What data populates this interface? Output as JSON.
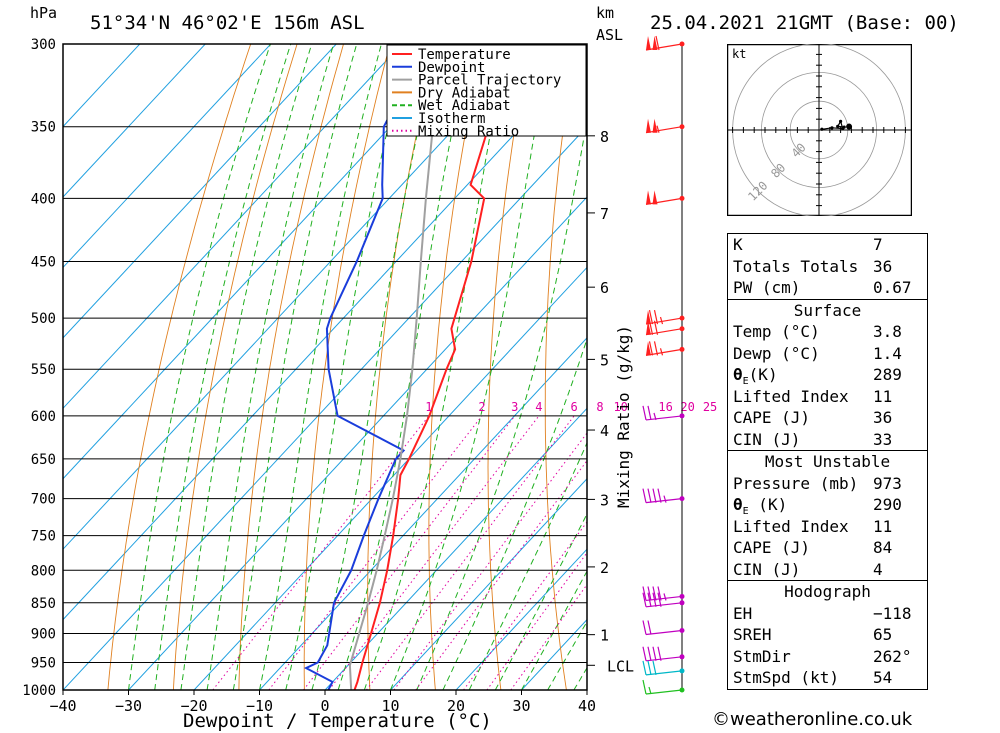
{
  "header": {
    "pressure_unit": "hPa",
    "location": "51°34'N  46°02'E  156m  ASL",
    "km_label": "km",
    "asl_label": "ASL",
    "datetime": "25.04.2021  21GMT  (Base: 00)"
  },
  "chart_data": {
    "type": "line",
    "title": "51°34'N  46°02'E  156m  ASL",
    "xlabel": "Dewpoint / Temperature (°C)",
    "ylabel": "hPa",
    "xlim": [
      -40,
      40
    ],
    "ylim": [
      1000,
      300
    ],
    "x_ticks": [
      -40,
      -30,
      -20,
      -10,
      0,
      10,
      20,
      30,
      40
    ],
    "x_tick_labels": [
      "−40",
      "−30",
      "−20",
      "−10",
      "0",
      "10",
      "20",
      "30",
      "40"
    ],
    "pressure_levels": [
      300,
      350,
      400,
      450,
      500,
      550,
      600,
      650,
      700,
      750,
      800,
      850,
      900,
      950,
      1000
    ],
    "km_ticks": [
      {
        "km": "1",
        "p": 902
      },
      {
        "km": "2",
        "p": 795
      },
      {
        "km": "3",
        "p": 701
      },
      {
        "km": "4",
        "p": 616
      },
      {
        "km": "5",
        "p": 540
      },
      {
        "km": "6",
        "p": 472
      },
      {
        "km": "7",
        "p": 411
      },
      {
        "km": "8",
        "p": 356
      }
    ],
    "lcl": {
      "label": "LCL",
      "p": 955
    },
    "mixing_ratio_axis_label": "Mixing Ratio (g/kg)",
    "mixing_ratio_values": [
      1,
      2,
      3,
      4,
      6,
      8,
      10,
      16,
      20,
      25
    ],
    "mixing_ratio_labels": [
      "1",
      "2",
      "3",
      "4",
      "6",
      "8",
      "10",
      "16",
      "20",
      "25"
    ],
    "legend": {
      "position": "top-center",
      "entries": [
        {
          "label": "Temperature",
          "color": "#ff2020",
          "style": "solid"
        },
        {
          "label": "Dewpoint",
          "color": "#1a3ddb",
          "style": "solid"
        },
        {
          "label": "Parcel Trajectory",
          "color": "#a0a0a0",
          "style": "solid"
        },
        {
          "label": "Dry Adiabat",
          "color": "#e08020",
          "style": "solid"
        },
        {
          "label": "Wet Adiabat",
          "color": "#20b020",
          "style": "dashed"
        },
        {
          "label": "Isotherm",
          "color": "#20a0e0",
          "style": "solid"
        },
        {
          "label": "Mixing Ratio",
          "color": "#e000a0",
          "style": "dotted"
        }
      ]
    },
    "series": [
      {
        "name": "Temperature",
        "color": "#ff2020",
        "points": [
          [
            1000,
            4.5
          ],
          [
            985,
            3.8
          ],
          [
            950,
            1.8
          ],
          [
            900,
            -1
          ],
          [
            850,
            -4
          ],
          [
            800,
            -7.5
          ],
          [
            750,
            -11.5
          ],
          [
            700,
            -16
          ],
          [
            670,
            -19
          ],
          [
            650,
            -20
          ],
          [
            600,
            -23
          ],
          [
            550,
            -27
          ],
          [
            530,
            -28.5
          ],
          [
            510,
            -32
          ],
          [
            450,
            -38.5
          ],
          [
            400,
            -45.5
          ],
          [
            390,
            -49.5
          ],
          [
            350,
            -55
          ],
          [
            310,
            -56
          ],
          [
            300,
            -56.5
          ]
        ]
      },
      {
        "name": "Dewpoint",
        "color": "#1a3ddb",
        "points": [
          [
            1000,
            0.5
          ],
          [
            985,
            0
          ],
          [
            960,
            -6
          ],
          [
            950,
            -5
          ],
          [
            920,
            -6
          ],
          [
            850,
            -11
          ],
          [
            800,
            -13
          ],
          [
            750,
            -16
          ],
          [
            700,
            -19
          ],
          [
            650,
            -22
          ],
          [
            640,
            -22
          ],
          [
            600,
            -37
          ],
          [
            550,
            -45
          ],
          [
            510,
            -51
          ],
          [
            500,
            -52
          ],
          [
            450,
            -56
          ],
          [
            400,
            -61
          ],
          [
            390,
            -63
          ],
          [
            350,
            -71
          ],
          [
            320,
            -74
          ],
          [
            300,
            -76
          ]
        ]
      },
      {
        "name": "Parcel Trajectory",
        "color": "#a0a0a0",
        "points": [
          [
            1000,
            4.0
          ],
          [
            955,
            0.3
          ],
          [
            900,
            -2.8
          ],
          [
            850,
            -5.8
          ],
          [
            800,
            -9.1
          ],
          [
            750,
            -12.8
          ],
          [
            700,
            -16.8
          ],
          [
            650,
            -21.3
          ],
          [
            600,
            -26.4
          ],
          [
            550,
            -32.2
          ],
          [
            500,
            -38.8
          ],
          [
            450,
            -46.2
          ],
          [
            400,
            -54.4
          ],
          [
            350,
            -63.5
          ],
          [
            300,
            -73
          ]
        ]
      }
    ],
    "wind_barbs": [
      {
        "p": 300,
        "dir": 260,
        "spd": 110
      },
      {
        "p": 350,
        "dir": 260,
        "spd": 105
      },
      {
        "p": 400,
        "dir": 255,
        "spd": 100
      },
      {
        "p": 500,
        "dir": 255,
        "spd": 75
      },
      {
        "p": 510,
        "dir": 260,
        "spd": 70
      },
      {
        "p": 530,
        "dir": 255,
        "spd": 75
      },
      {
        "p": 600,
        "dir": 290,
        "spd": 25
      },
      {
        "p": 700,
        "dir": 250,
        "spd": 45
      },
      {
        "p": 840,
        "dir": 240,
        "spd": 45
      },
      {
        "p": 850,
        "dir": 245,
        "spd": 40
      },
      {
        "p": 895,
        "dir": 270,
        "spd": 20
      },
      {
        "p": 940,
        "dir": 250,
        "spd": 40
      },
      {
        "p": 965,
        "dir": 230,
        "spd": 30
      },
      {
        "p": 1000,
        "dir": 200,
        "spd": 15
      }
    ],
    "hodograph": {
      "unit_label": "kt",
      "rings": [
        40,
        80,
        120
      ],
      "ring_labels": [
        "40",
        "80",
        "120"
      ],
      "points": [
        [
          4,
          1
        ],
        [
          18,
          3
        ],
        [
          33,
          2
        ],
        [
          30,
          12
        ],
        [
          26,
          5
        ],
        [
          35,
          4
        ]
      ],
      "storm_motion": [
        14,
        2
      ]
    }
  },
  "indices": {
    "block1": [
      {
        "label": "K",
        "value": "7"
      },
      {
        "label": "Totals Totals",
        "value": "36"
      },
      {
        "label": "PW (cm)",
        "value": "0.67"
      }
    ],
    "surface": {
      "title": "Surface",
      "rows": [
        {
          "label": "Temp (°C)",
          "value": "3.8"
        },
        {
          "label": "Dewp (°C)",
          "value": "1.4"
        },
        {
          "label": "θE(K)",
          "value": "289"
        },
        {
          "label": "Lifted Index",
          "value": "11"
        },
        {
          "label": "CAPE (J)",
          "value": "36"
        },
        {
          "label": "CIN (J)",
          "value": "33"
        }
      ]
    },
    "most_unstable": {
      "title": "Most Unstable",
      "rows": [
        {
          "label": "Pressure (mb)",
          "value": "973"
        },
        {
          "label": "θE (K)",
          "value": "290"
        },
        {
          "label": "Lifted Index",
          "value": "11"
        },
        {
          "label": "CAPE (J)",
          "value": "84"
        },
        {
          "label": "CIN (J)",
          "value": "4"
        }
      ]
    },
    "hodograph": {
      "title": "Hodograph",
      "rows": [
        {
          "label": "EH",
          "value": "−118"
        },
        {
          "label": "SREH",
          "value": "65"
        },
        {
          "label": "StmDir",
          "value": "262°"
        },
        {
          "label": "StmSpd (kt)",
          "value": "54"
        }
      ]
    }
  },
  "footer": {
    "copyright": "©weatheronline.co.uk"
  }
}
